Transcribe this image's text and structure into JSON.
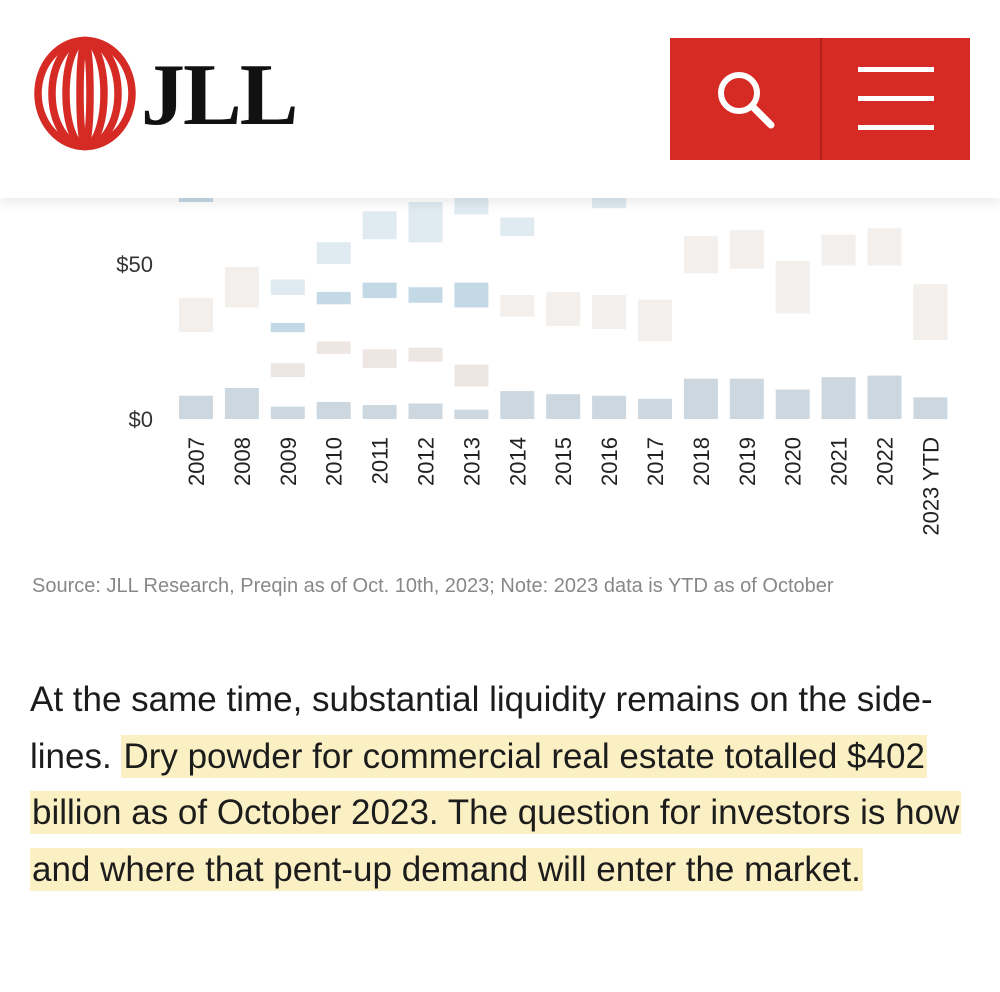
{
  "header": {
    "logo_text": "JLL",
    "search_icon": "search-icon",
    "menu_icon": "hamburger-menu-icon",
    "brand_color": "#d62b25"
  },
  "chart_data": {
    "type": "bar",
    "title": "",
    "xlabel": "",
    "ylabel": "",
    "categories": [
      "2007",
      "2008",
      "2009",
      "2010",
      "2011",
      "2012",
      "2013",
      "2014",
      "2015",
      "2016",
      "2017",
      "2018",
      "2019",
      "2020",
      "2021",
      "2022",
      "2023 YTD"
    ],
    "y_ticks": [
      "$0",
      "$50"
    ],
    "ylim": [
      0,
      75
    ],
    "series": [
      {
        "color": "#ccd7df",
        "values": [
          7.5,
          10,
          4,
          5.5,
          4.5,
          5,
          3,
          9,
          8,
          7.5,
          6.5,
          13,
          13,
          9.5,
          13.5,
          14,
          7
        ]
      }
    ],
    "range_markers": [
      {
        "color": "#f2efec",
        "ranges": [
          [
            28,
            39
          ],
          [
            36,
            49
          ],
          null,
          null,
          null,
          null,
          null,
          [
            33,
            40
          ],
          [
            30,
            41
          ],
          [
            29,
            40
          ],
          [
            25,
            38.5
          ],
          [
            47,
            59
          ],
          [
            48.5,
            61
          ],
          [
            34,
            51
          ],
          [
            49.5,
            59.5
          ],
          [
            49.5,
            61.5
          ],
          [
            25.5,
            43.5
          ]
        ]
      },
      {
        "color": "#dfeaf1",
        "ranges": [
          null,
          null,
          [
            40,
            45
          ],
          [
            50,
            57
          ],
          [
            58,
            67
          ],
          [
            57,
            70
          ],
          [
            66,
            75
          ],
          [
            59,
            65
          ],
          null,
          [
            68,
            75
          ],
          null,
          null,
          null,
          null,
          null,
          null,
          null
        ]
      },
      {
        "color": "#c3d9e5",
        "ranges": [
          [
            70,
            75
          ],
          null,
          [
            28,
            31
          ],
          [
            37,
            41
          ],
          [
            39,
            44
          ],
          [
            37.5,
            42.5
          ],
          [
            36,
            44
          ],
          null,
          null,
          null,
          null,
          null,
          null,
          null,
          null,
          null,
          null
        ]
      },
      {
        "color": "#ede6e3",
        "ranges": [
          null,
          null,
          [
            13.5,
            18
          ],
          [
            21,
            25
          ],
          [
            16.5,
            22.5
          ],
          [
            18.5,
            23
          ],
          [
            10.5,
            17.5
          ],
          null,
          null,
          null,
          null,
          null,
          null,
          null,
          null,
          null,
          null
        ]
      }
    ]
  },
  "source_text": "Source: JLL Research, Preqin as of Oct. 10th, 2023; Note: 2023 data is YTD as of October",
  "paragraph": {
    "plain": "At the same time, substantial liquidity remains on the side-lines. ",
    "highlighted": "Dry powder for commercial real estate totalled $402 billion as of October 2023. The question for investors is how and where that pent-up demand will enter the market."
  }
}
